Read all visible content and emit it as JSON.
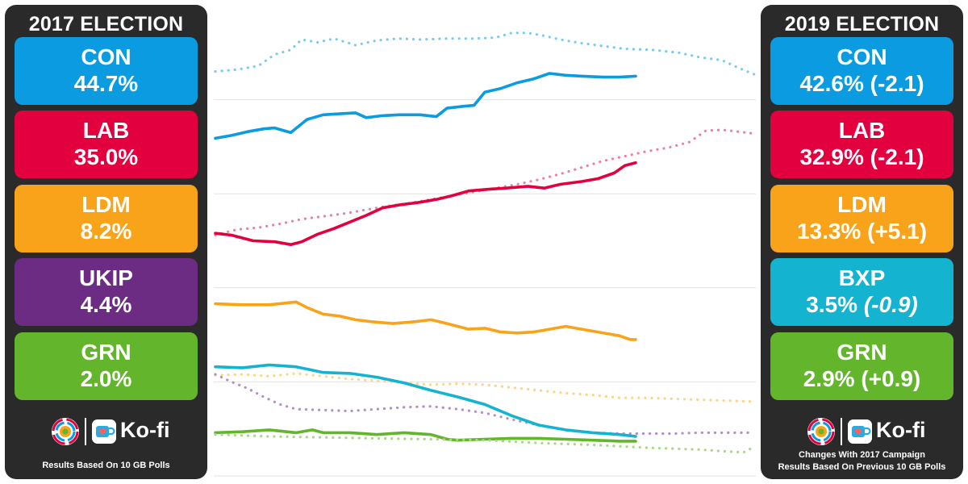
{
  "left_panel": {
    "title": "2017 ELECTION",
    "parties": [
      {
        "name": "CON",
        "value": "44.7%",
        "color": "#0a9be0"
      },
      {
        "name": "LAB",
        "value": "35.0%",
        "color": "#e3003f"
      },
      {
        "name": "LDM",
        "value": "8.2%",
        "color": "#f9a31b"
      },
      {
        "name": "UKIP",
        "value": "4.4%",
        "color": "#6c2c83"
      },
      {
        "name": "GRN",
        "value": "2.0%",
        "color": "#63b52c"
      }
    ],
    "brand": {
      "kofi_label": "Ko-fi"
    },
    "footnote": "Results Based On 10 GB Polls"
  },
  "right_panel": {
    "title": "2019 ELECTION",
    "parties": [
      {
        "name": "CON",
        "value": "42.6%",
        "change": "(-2.1)",
        "color": "#0a9be0"
      },
      {
        "name": "LAB",
        "value": "32.9%",
        "change": "(-2.1)",
        "color": "#e3003f"
      },
      {
        "name": "LDM",
        "value": "13.3%",
        "change": "(+5.1)",
        "color": "#f9a31b"
      },
      {
        "name": "BXP",
        "value": "3.5%",
        "change": "(-0.9)",
        "change_italic": true,
        "color": "#14b4d1"
      },
      {
        "name": "GRN",
        "value": "2.9%",
        "change": "(+0.9)",
        "color": "#63b52c"
      }
    ],
    "brand": {
      "kofi_label": "Ko-fi"
    },
    "footnote_line1": "Changes With 2017 Campaign",
    "footnote_line2": "Results Based On Previous 10 GB Polls"
  },
  "chart_data": {
    "type": "line",
    "title": "",
    "xlabel": "",
    "ylabel": "",
    "x_range": [
      0,
      100
    ],
    "ylim": [
      0,
      50
    ],
    "grid": true,
    "gridlines_y": [
      0,
      10,
      20,
      30,
      40
    ],
    "series": [
      {
        "party": "CON",
        "campaign": "2017",
        "style": "dotted",
        "color": "#7ccbef",
        "points": [
          [
            0,
            43
          ],
          [
            4,
            43.2
          ],
          [
            8,
            43.6
          ],
          [
            11,
            44.8
          ],
          [
            14,
            45.3
          ],
          [
            16,
            46.4
          ],
          [
            19,
            46.1
          ],
          [
            22,
            46.5
          ],
          [
            26,
            45.8
          ],
          [
            30,
            46.3
          ],
          [
            34,
            46.5
          ],
          [
            38,
            46.4
          ],
          [
            43,
            46.5
          ],
          [
            48,
            46.5
          ],
          [
            52,
            46.6
          ],
          [
            55,
            47.1
          ],
          [
            58,
            47.1
          ],
          [
            61,
            46.8
          ],
          [
            64,
            46.4
          ],
          [
            68,
            46
          ],
          [
            72,
            45.7
          ],
          [
            76,
            45.4
          ],
          [
            81,
            45.3
          ],
          [
            86,
            45
          ],
          [
            90,
            44.5
          ],
          [
            94,
            44.2
          ],
          [
            97,
            43.4
          ],
          [
            100,
            42.7
          ]
        ]
      },
      {
        "party": "CON",
        "campaign": "2019",
        "style": "solid",
        "color": "#0a9be0",
        "points": [
          [
            0,
            35.9
          ],
          [
            3,
            36.2
          ],
          [
            6,
            36.6
          ],
          [
            9,
            36.9
          ],
          [
            11,
            37
          ],
          [
            14,
            36.5
          ],
          [
            17,
            37.9
          ],
          [
            20,
            38.4
          ],
          [
            23,
            38.5
          ],
          [
            26,
            38.6
          ],
          [
            28,
            38.1
          ],
          [
            31,
            38.3
          ],
          [
            34,
            38.4
          ],
          [
            38,
            38.4
          ],
          [
            41,
            38.2
          ],
          [
            43,
            39.1
          ],
          [
            46,
            39.3
          ],
          [
            48,
            39.4
          ],
          [
            50,
            40.8
          ],
          [
            53,
            41.2
          ],
          [
            56,
            41.8
          ],
          [
            59,
            42.2
          ],
          [
            62,
            42.8
          ],
          [
            65,
            42.6
          ],
          [
            68,
            42.5
          ],
          [
            72,
            42.4
          ],
          [
            75,
            42.4
          ],
          [
            78,
            42.5
          ]
        ]
      },
      {
        "party": "LAB",
        "campaign": "2017",
        "style": "dotted",
        "color": "#ef7fa0",
        "points": [
          [
            0,
            25.6
          ],
          [
            4,
            26.2
          ],
          [
            8,
            26.4
          ],
          [
            12,
            26.8
          ],
          [
            16,
            27.3
          ],
          [
            20,
            27.6
          ],
          [
            24,
            27.9
          ],
          [
            28,
            28.3
          ],
          [
            32,
            28.7
          ],
          [
            36,
            29
          ],
          [
            40,
            29.4
          ],
          [
            44,
            29.8
          ],
          [
            48,
            30.2
          ],
          [
            52,
            30.6
          ],
          [
            56,
            31
          ],
          [
            60,
            31.5
          ],
          [
            64,
            32.1
          ],
          [
            68,
            32.8
          ],
          [
            72,
            33.5
          ],
          [
            76,
            34
          ],
          [
            80,
            34.5
          ],
          [
            84,
            34.9
          ],
          [
            88,
            35.5
          ],
          [
            91,
            36.7
          ],
          [
            94,
            36.8
          ],
          [
            97,
            36.6
          ],
          [
            100,
            36.4
          ]
        ]
      },
      {
        "party": "LAB",
        "campaign": "2019",
        "style": "solid",
        "color": "#e3003f",
        "points": [
          [
            0,
            25.8
          ],
          [
            3,
            25.6
          ],
          [
            7,
            25
          ],
          [
            11,
            24.9
          ],
          [
            14,
            24.6
          ],
          [
            16,
            24.9
          ],
          [
            19,
            25.7
          ],
          [
            22,
            26.3
          ],
          [
            25,
            27
          ],
          [
            28,
            27.7
          ],
          [
            31,
            28.5
          ],
          [
            34,
            28.8
          ],
          [
            38,
            29.1
          ],
          [
            41,
            29.4
          ],
          [
            44,
            29.8
          ],
          [
            47,
            30.3
          ],
          [
            51,
            30.5
          ],
          [
            54,
            30.6
          ],
          [
            58,
            30.8
          ],
          [
            61,
            30.6
          ],
          [
            64,
            31
          ],
          [
            68,
            31.3
          ],
          [
            71,
            31.6
          ],
          [
            74,
            32.2
          ],
          [
            76,
            33
          ],
          [
            78,
            33.3
          ]
        ]
      },
      {
        "party": "LDM",
        "campaign": "2019",
        "style": "solid",
        "color": "#f9a31b",
        "points": [
          [
            0,
            18.3
          ],
          [
            5,
            18.2
          ],
          [
            10,
            18.2
          ],
          [
            15,
            18.5
          ],
          [
            17,
            17.9
          ],
          [
            20,
            17.2
          ],
          [
            23,
            17
          ],
          [
            26,
            16.6
          ],
          [
            29,
            16.4
          ],
          [
            33,
            16.2
          ],
          [
            37,
            16.4
          ],
          [
            40,
            16.6
          ],
          [
            43,
            16.2
          ],
          [
            47,
            15.6
          ],
          [
            50,
            15.7
          ],
          [
            53,
            15.3
          ],
          [
            56,
            15.2
          ],
          [
            59,
            15.3
          ],
          [
            62,
            15.6
          ],
          [
            65,
            15.9
          ],
          [
            68,
            15.6
          ],
          [
            71,
            15.3
          ],
          [
            73,
            15.1
          ],
          [
            75,
            14.9
          ],
          [
            77,
            14.5
          ],
          [
            78,
            14.5
          ]
        ]
      },
      {
        "party": "LDM",
        "campaign": "2017",
        "style": "dotted",
        "color": "#fcd48a",
        "points": [
          [
            0,
            10.7
          ],
          [
            5,
            10.8
          ],
          [
            10,
            10.6
          ],
          [
            15,
            10.9
          ],
          [
            20,
            10.6
          ],
          [
            25,
            10.3
          ],
          [
            30,
            10.1
          ],
          [
            35,
            9.9
          ],
          [
            40,
            9.7
          ],
          [
            45,
            9.8
          ],
          [
            50,
            9.7
          ],
          [
            55,
            9.4
          ],
          [
            60,
            9.1
          ],
          [
            65,
            8.8
          ],
          [
            70,
            8.6
          ],
          [
            75,
            8.3
          ],
          [
            80,
            8.3
          ],
          [
            85,
            8.2
          ],
          [
            90,
            8.1
          ],
          [
            95,
            8
          ],
          [
            100,
            7.9
          ]
        ]
      },
      {
        "party": "UKIP",
        "campaign": "2017",
        "style": "dotted",
        "color": "#b190c4",
        "points": [
          [
            0,
            10.8
          ],
          [
            3,
            10
          ],
          [
            6,
            9.3
          ],
          [
            9,
            8.4
          ],
          [
            12,
            7.6
          ],
          [
            15,
            7.1
          ],
          [
            20,
            7
          ],
          [
            25,
            6.9
          ],
          [
            30,
            7.1
          ],
          [
            35,
            7.3
          ],
          [
            40,
            7.4
          ],
          [
            45,
            7.1
          ],
          [
            50,
            6.7
          ],
          [
            55,
            6
          ],
          [
            60,
            5.4
          ],
          [
            65,
            4.9
          ],
          [
            70,
            4.6
          ],
          [
            75,
            4.5
          ],
          [
            80,
            4.5
          ],
          [
            85,
            4.5
          ],
          [
            90,
            4.6
          ],
          [
            95,
            4.6
          ],
          [
            100,
            4.6
          ]
        ]
      },
      {
        "party": "BXP",
        "campaign": "2019",
        "style": "solid",
        "color": "#14b4d1",
        "points": [
          [
            0,
            11.6
          ],
          [
            5,
            11.5
          ],
          [
            10,
            11.8
          ],
          [
            15,
            11.6
          ],
          [
            20,
            11
          ],
          [
            25,
            10.9
          ],
          [
            30,
            10.5
          ],
          [
            35,
            9.9
          ],
          [
            40,
            9.1
          ],
          [
            45,
            8.4
          ],
          [
            50,
            7.6
          ],
          [
            55,
            6.4
          ],
          [
            60,
            5.4
          ],
          [
            65,
            4.9
          ],
          [
            70,
            4.6
          ],
          [
            75,
            4.4
          ],
          [
            78,
            4.2
          ]
        ]
      },
      {
        "party": "GRN",
        "campaign": "2019",
        "style": "solid",
        "color": "#63b52c",
        "points": [
          [
            0,
            4.6
          ],
          [
            5,
            4.7
          ],
          [
            10,
            4.9
          ],
          [
            15,
            4.6
          ],
          [
            18,
            4.9
          ],
          [
            20,
            4.6
          ],
          [
            25,
            4.6
          ],
          [
            30,
            4.4
          ],
          [
            35,
            4.6
          ],
          [
            40,
            4.4
          ],
          [
            43,
            3.9
          ],
          [
            45,
            3.8
          ],
          [
            50,
            3.9
          ],
          [
            55,
            4
          ],
          [
            60,
            4
          ],
          [
            65,
            3.9
          ],
          [
            70,
            3.8
          ],
          [
            75,
            3.7
          ],
          [
            78,
            3.7
          ]
        ]
      },
      {
        "party": "GRN",
        "campaign": "2017",
        "style": "dotted",
        "color": "#a9d886",
        "points": [
          [
            0,
            4.4
          ],
          [
            10,
            4.2
          ],
          [
            20,
            4.1
          ],
          [
            30,
            4
          ],
          [
            40,
            3.9
          ],
          [
            50,
            3.8
          ],
          [
            60,
            3.5
          ],
          [
            70,
            3.3
          ],
          [
            80,
            3
          ],
          [
            85,
            2.9
          ],
          [
            90,
            2.8
          ],
          [
            95,
            2.6
          ],
          [
            98,
            2.5
          ],
          [
            100,
            3.1
          ]
        ]
      }
    ]
  }
}
